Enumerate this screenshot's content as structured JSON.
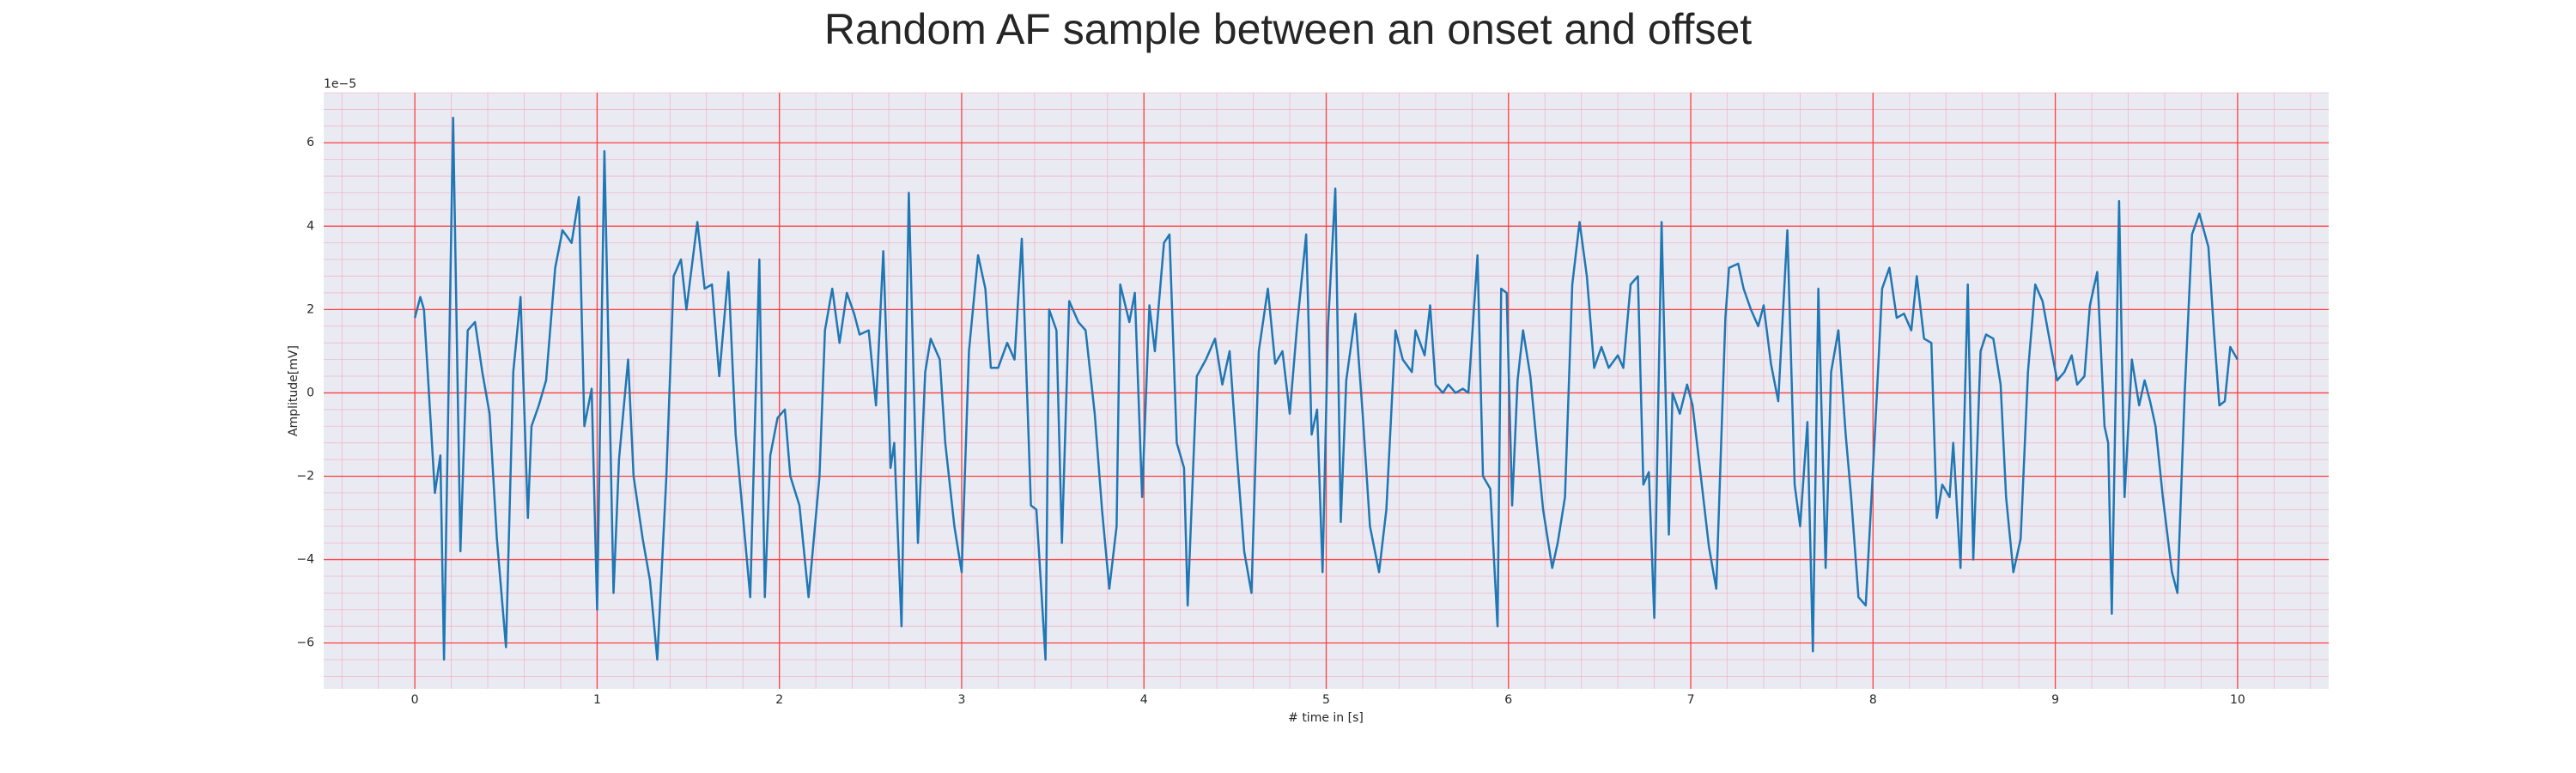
{
  "chart_data": {
    "type": "line",
    "title": "Random AF sample between an onset and offset",
    "x_label": "# time in [s]",
    "y_label": "Amplitude[mV]",
    "y_offset_label": "1e−5",
    "xlim": [
      -0.5,
      10.5
    ],
    "ylim": [
      -7.1,
      7.2
    ],
    "xticks": [
      0,
      1,
      2,
      3,
      4,
      5,
      6,
      7,
      8,
      9,
      10
    ],
    "yticks": [
      {
        "value": -6,
        "label": "−6"
      },
      {
        "value": -4,
        "label": "−4"
      },
      {
        "value": -2,
        "label": "−2"
      },
      0,
      2,
      4,
      6
    ],
    "grid": true,
    "minor_grid": {
      "x": 0.2,
      "y": 0.4
    },
    "x": [
      0,
      0.03,
      0.05,
      0.11,
      0.14,
      0.16,
      0.21,
      0.25,
      0.29,
      0.33,
      0.37,
      0.41,
      0.45,
      0.5,
      0.54,
      0.58,
      0.62,
      0.64,
      0.68,
      0.72,
      0.77,
      0.81,
      0.86,
      0.9,
      0.93,
      0.97,
      1.0,
      1.04,
      1.09,
      1.12,
      1.17,
      1.2,
      1.25,
      1.29,
      1.33,
      1.38,
      1.42,
      1.46,
      1.49,
      1.55,
      1.59,
      1.63,
      1.67,
      1.72,
      1.76,
      1.84,
      1.89,
      1.92,
      1.95,
      1.99,
      2.03,
      2.06,
      2.11,
      2.16,
      2.22,
      2.25,
      2.29,
      2.33,
      2.37,
      2.41,
      2.44,
      2.49,
      2.53,
      2.57,
      2.61,
      2.63,
      2.67,
      2.71,
      2.76,
      2.8,
      2.83,
      2.88,
      2.91,
      2.96,
      3.0,
      3.04,
      3.09,
      3.13,
      3.16,
      3.2,
      3.25,
      3.29,
      3.33,
      3.38,
      3.41,
      3.46,
      3.48,
      3.52,
      3.55,
      3.59,
      3.64,
      3.68,
      3.73,
      3.77,
      3.81,
      3.85,
      3.87,
      3.92,
      3.95,
      3.99,
      4.03,
      4.06,
      4.11,
      4.14,
      4.18,
      4.22,
      4.24,
      4.29,
      4.34,
      4.39,
      4.43,
      4.47,
      4.51,
      4.55,
      4.59,
      4.63,
      4.68,
      4.72,
      4.76,
      4.8,
      4.84,
      4.89,
      4.92,
      4.95,
      4.98,
      5.01,
      5.05,
      5.08,
      5.11,
      5.16,
      5.2,
      5.24,
      5.29,
      5.33,
      5.38,
      5.42,
      5.47,
      5.49,
      5.54,
      5.57,
      5.6,
      5.64,
      5.67,
      5.71,
      5.75,
      5.78,
      5.83,
      5.86,
      5.9,
      5.94,
      5.96,
      5.99,
      6.02,
      6.05,
      6.08,
      6.12,
      6.15,
      6.19,
      6.24,
      6.27,
      6.31,
      6.35,
      6.39,
      6.43,
      6.47,
      6.51,
      6.55,
      6.6,
      6.63,
      6.67,
      6.71,
      6.74,
      6.77,
      6.8,
      6.84,
      6.88,
      6.9,
      6.94,
      6.98,
      7.01,
      7.05,
      7.1,
      7.14,
      7.19,
      7.21,
      7.26,
      7.29,
      7.33,
      7.37,
      7.4,
      7.44,
      7.48,
      7.53,
      7.57,
      7.6,
      7.64,
      7.67,
      7.7,
      7.74,
      7.77,
      7.81,
      7.85,
      7.88,
      7.92,
      7.96,
      8.01,
      8.05,
      8.09,
      8.13,
      8.17,
      8.21,
      8.24,
      8.28,
      8.32,
      8.35,
      8.38,
      8.42,
      8.44,
      8.48,
      8.52,
      8.55,
      8.59,
      8.62,
      8.66,
      8.7,
      8.73,
      8.77,
      8.81,
      8.85,
      8.89,
      8.93,
      8.98,
      9.01,
      9.05,
      9.09,
      9.12,
      9.16,
      9.19,
      9.23,
      9.27,
      9.29,
      9.31,
      9.35,
      9.38,
      9.42,
      9.46,
      9.49,
      9.52,
      9.55,
      9.59,
      9.64,
      9.67,
      9.71,
      9.75,
      9.79,
      9.84,
      9.87,
      9.9,
      9.93,
      9.96,
      10
    ],
    "series": [
      {
        "color": "#1f77b4",
        "values": [
          1.8,
          2.3,
          2.0,
          -2.4,
          -1.5,
          -6.4,
          6.6,
          -3.8,
          1.5,
          1.7,
          0.5,
          -0.5,
          -3.5,
          -6.1,
          0.5,
          2.3,
          -3.0,
          -0.8,
          -0.3,
          0.3,
          3.0,
          3.9,
          3.6,
          4.7,
          -0.8,
          0.1,
          -5.2,
          5.8,
          -4.8,
          -1.6,
          0.8,
          -2.0,
          -3.5,
          -4.5,
          -6.4,
          -2.0,
          2.8,
          3.2,
          2.0,
          4.1,
          2.5,
          2.6,
          0.4,
          2.9,
          -1.0,
          -4.9,
          3.2,
          -4.9,
          -1.5,
          -0.6,
          -0.4,
          -2.0,
          -2.7,
          -4.9,
          -2.0,
          1.5,
          2.5,
          1.2,
          2.4,
          1.9,
          1.4,
          1.5,
          -0.3,
          3.4,
          -1.8,
          -1.2,
          -5.6,
          4.8,
          -3.6,
          0.5,
          1.3,
          0.8,
          -1.2,
          -3.2,
          -4.3,
          1.0,
          3.3,
          2.5,
          0.6,
          0.6,
          1.2,
          0.8,
          3.7,
          -2.7,
          -2.8,
          -6.4,
          2.0,
          1.5,
          -3.6,
          2.2,
          1.7,
          1.5,
          -0.5,
          -2.8,
          -4.7,
          -3.2,
          2.6,
          1.7,
          2.4,
          -2.5,
          2.1,
          1.0,
          3.6,
          3.8,
          -1.2,
          -1.8,
          -5.1,
          0.4,
          0.8,
          1.3,
          0.2,
          1.0,
          -1.5,
          -3.8,
          -4.8,
          1.0,
          2.5,
          0.7,
          1.0,
          -0.5,
          1.6,
          3.8,
          -1.0,
          -0.4,
          -4.3,
          1.6,
          4.9,
          -3.1,
          0.3,
          1.9,
          -0.5,
          -3.2,
          -4.3,
          -2.8,
          1.5,
          0.8,
          0.5,
          1.5,
          0.9,
          2.1,
          0.2,
          0,
          0.2,
          0,
          0.1,
          0,
          3.3,
          -2.0,
          -2.3,
          -5.6,
          2.5,
          2.4,
          -2.7,
          0.3,
          1.5,
          0.4,
          -1.0,
          -2.8,
          -4.2,
          -3.6,
          -2.5,
          2.6,
          4.1,
          2.8,
          0.6,
          1.1,
          0.6,
          0.9,
          0.6,
          2.6,
          2.8,
          -2.2,
          -1.9,
          -5.4,
          4.1,
          -3.4,
          0,
          -0.5,
          0.2,
          -0.3,
          -1.8,
          -3.7,
          -4.7,
          1.8,
          3.0,
          3.1,
          2.5,
          2.0,
          1.6,
          2.1,
          0.7,
          -0.2,
          3.9,
          -2.2,
          -3.2,
          -0.7,
          -6.2,
          2.5,
          -4.2,
          0.5,
          1.5,
          -1.0,
          -2.5,
          -4.9,
          -5.1,
          -1.0,
          2.5,
          3.0,
          1.8,
          1.9,
          1.5,
          2.8,
          1.3,
          1.2,
          -3.0,
          -2.2,
          -2.5,
          -1.2,
          -4.2,
          2.6,
          -4.0,
          1.0,
          1.4,
          1.3,
          0.2,
          -2.5,
          -4.3,
          -3.5,
          0.5,
          2.6,
          2.2,
          1.0,
          0.3,
          0.5,
          0.9,
          0.2,
          0.4,
          2.1,
          2.9,
          -0.8,
          -1.2,
          -5.3,
          4.6,
          -2.5,
          0.8,
          -0.3,
          0.3,
          -0.2,
          -0.8,
          -2.5,
          -4.3,
          -4.8,
          0,
          3.8,
          4.3,
          3.5,
          1.5,
          -0.3,
          -0.2,
          1.1,
          0.8
        ]
      }
    ]
  }
}
